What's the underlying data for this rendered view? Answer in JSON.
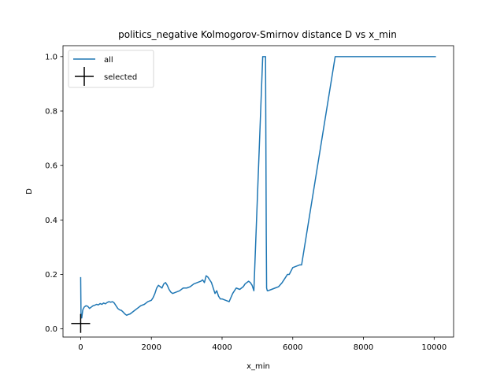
{
  "chart_data": {
    "type": "line",
    "title": "politics_negative Kolmogorov-Smirnov distance D vs x_min",
    "xlabel": "x_min",
    "ylabel": "D",
    "xlim": [
      -500,
      10550
    ],
    "ylim": [
      -0.03,
      1.04
    ],
    "xticks": [
      0,
      2000,
      4000,
      6000,
      8000,
      10000
    ],
    "yticks": [
      0.0,
      0.2,
      0.4,
      0.6,
      0.8,
      1.0
    ],
    "xtick_labels": [
      "0",
      "2000",
      "4000",
      "6000",
      "8000",
      "10000"
    ],
    "ytick_labels": [
      "0.0",
      "0.2",
      "0.4",
      "0.6",
      "0.8",
      "1.0"
    ],
    "grid": false,
    "legend_position": "top-left",
    "series": [
      {
        "name": "all",
        "color": "#1f77b4",
        "marker": "none",
        "x": [
          0,
          10,
          30,
          60,
          100,
          150,
          200,
          250,
          300,
          350,
          400,
          450,
          500,
          550,
          600,
          650,
          700,
          750,
          800,
          850,
          900,
          950,
          1000,
          1050,
          1100,
          1150,
          1200,
          1250,
          1300,
          1350,
          1400,
          1450,
          1500,
          1600,
          1700,
          1800,
          1900,
          2000,
          2050,
          2100,
          2150,
          2200,
          2250,
          2300,
          2350,
          2400,
          2450,
          2500,
          2550,
          2600,
          2700,
          2800,
          2900,
          3000,
          3100,
          3200,
          3300,
          3400,
          3450,
          3500,
          3550,
          3600,
          3650,
          3700,
          3750,
          3800,
          3850,
          3900,
          3950,
          4000,
          4100,
          4200,
          4250,
          4300,
          4350,
          4400,
          4500,
          4600,
          4650,
          4700,
          4750,
          4800,
          4850,
          4900,
          5150,
          5170,
          5230,
          5250,
          5260,
          5280,
          5300,
          5400,
          5500,
          5600,
          5700,
          5800,
          5850,
          5900,
          6000,
          6100,
          6200,
          6250,
          7200,
          10050
        ],
        "y": [
          0.19,
          0.05,
          0.04,
          0.07,
          0.08,
          0.085,
          0.083,
          0.075,
          0.08,
          0.085,
          0.087,
          0.09,
          0.088,
          0.093,
          0.09,
          0.095,
          0.092,
          0.097,
          0.1,
          0.098,
          0.1,
          0.095,
          0.085,
          0.075,
          0.07,
          0.068,
          0.062,
          0.055,
          0.05,
          0.053,
          0.055,
          0.06,
          0.065,
          0.075,
          0.085,
          0.09,
          0.1,
          0.105,
          0.115,
          0.13,
          0.15,
          0.16,
          0.155,
          0.15,
          0.165,
          0.17,
          0.16,
          0.145,
          0.135,
          0.13,
          0.135,
          0.14,
          0.15,
          0.15,
          0.155,
          0.165,
          0.17,
          0.175,
          0.18,
          0.17,
          0.195,
          0.19,
          0.18,
          0.17,
          0.15,
          0.13,
          0.14,
          0.12,
          0.11,
          0.11,
          0.105,
          0.1,
          0.115,
          0.13,
          0.14,
          0.15,
          0.145,
          0.155,
          0.165,
          0.17,
          0.175,
          0.17,
          0.16,
          0.14,
          1.0,
          1.0,
          1.0,
          0.35,
          0.15,
          0.14,
          0.14,
          0.145,
          0.15,
          0.155,
          0.17,
          0.19,
          0.2,
          0.2,
          0.225,
          0.23,
          0.235,
          0.235,
          1.0,
          1.0
        ]
      },
      {
        "name": "selected",
        "color": "#000000",
        "marker": "+",
        "x": [
          0
        ],
        "y": [
          0.02
        ]
      }
    ]
  }
}
